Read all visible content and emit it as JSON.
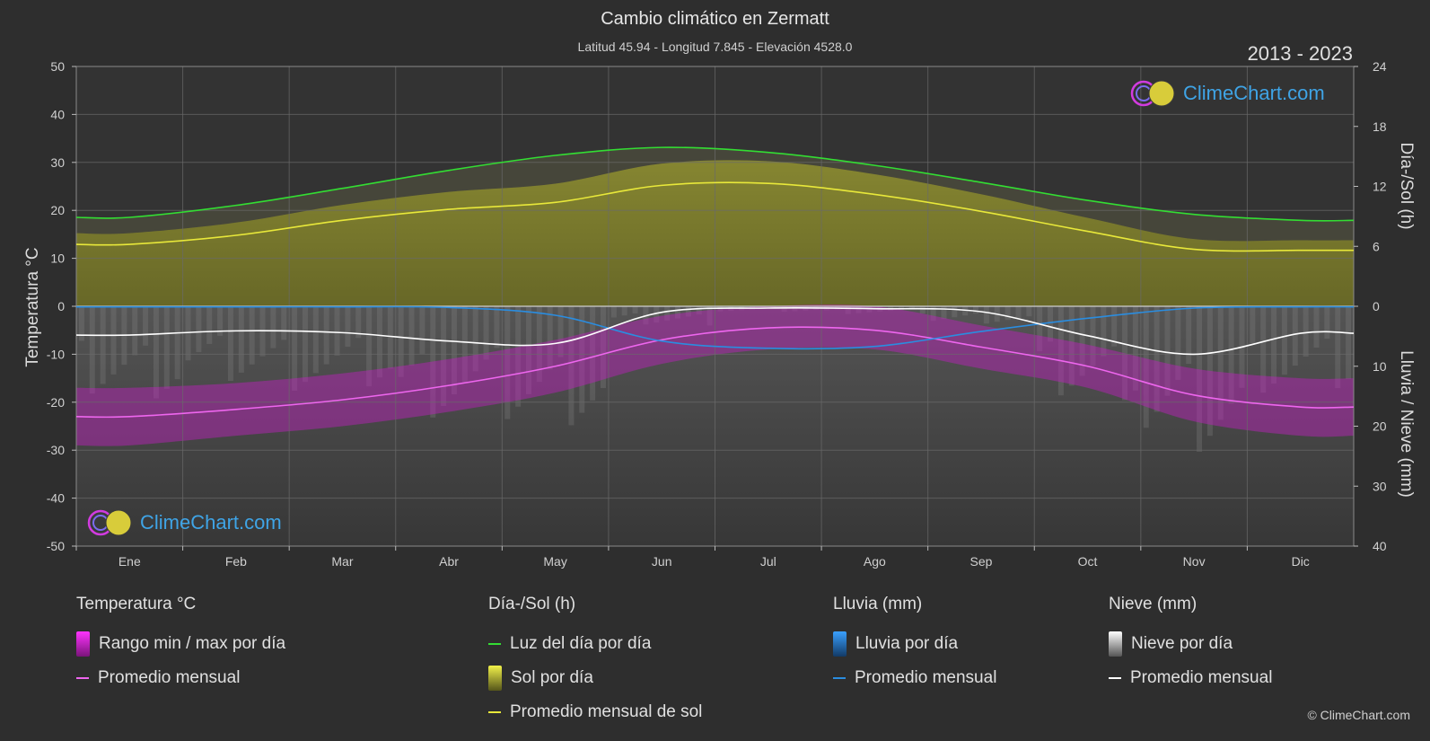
{
  "header": {
    "title": "Cambio climático en Zermatt",
    "subtitle": "Latitud 45.94 - Longitud 7.845 - Elevación 4528.0",
    "years": "2013 - 2023"
  },
  "brand": {
    "logo_text": "ClimeChart.com",
    "copyright": "© ClimeChart.com"
  },
  "axes": {
    "left_title": "Temperatura °C",
    "right_top_title": "Día-/Sol (h)",
    "right_bottom_title": "Lluvia / Nieve (mm)"
  },
  "chart_data": {
    "type": "line",
    "categories": [
      "Ene",
      "Feb",
      "Mar",
      "Abr",
      "May",
      "Jun",
      "Jul",
      "Ago",
      "Sep",
      "Oct",
      "Nov",
      "Dic"
    ],
    "temp_axis": {
      "range": [
        -50,
        50
      ],
      "ticks": [
        "50",
        "40",
        "30",
        "20",
        "10",
        "0",
        "-10",
        "-20",
        "-30",
        "-40",
        "-50"
      ]
    },
    "sun_axis": {
      "range": [
        0,
        24
      ],
      "ticks": [
        "24",
        "18",
        "12",
        "6",
        "0"
      ]
    },
    "precip_axis": {
      "range": [
        0,
        40
      ],
      "ticks": [
        "0",
        "10",
        "20",
        "30",
        "40"
      ]
    },
    "grid": true,
    "series": [
      {
        "name": "Luz del día por día",
        "axis": "sun",
        "color": "#33dd33",
        "values": [
          8.9,
          10.1,
          11.8,
          13.6,
          15.1,
          15.9,
          15.4,
          14.1,
          12.4,
          10.6,
          9.2,
          8.6
        ]
      },
      {
        "name": "Promedio mensual de sol",
        "axis": "sun",
        "color": "#e8e83a",
        "values": [
          6.2,
          7.1,
          8.6,
          9.7,
          10.4,
          12.1,
          12.3,
          11.2,
          9.5,
          7.5,
          5.7,
          5.6
        ]
      },
      {
        "name": "Promedio mensual",
        "group": "temp",
        "axis": "temp",
        "color": "#ee66ee",
        "values": [
          -23.0,
          -21.5,
          -19.5,
          -16.5,
          -12.5,
          -7.0,
          -4.5,
          -5.0,
          -8.5,
          -12.5,
          -18.5,
          -21.0
        ]
      },
      {
        "name": "Promedio mensual",
        "group": "rain",
        "axis": "precip",
        "color": "#2a8de0",
        "values": [
          0.1,
          0.1,
          0.1,
          0.2,
          1.5,
          5.8,
          7.0,
          6.7,
          4.2,
          2.0,
          0.3,
          0.1
        ]
      },
      {
        "name": "Promedio mensual",
        "group": "snow",
        "axis": "precip",
        "color": "#ffffff",
        "values": [
          4.8,
          4.1,
          4.4,
          5.8,
          6.2,
          1.0,
          0.3,
          0.4,
          0.9,
          4.9,
          8.0,
          4.5
        ]
      }
    ],
    "temp_range_daily": {
      "name": "Rango min / max por día",
      "min": [
        -29,
        -27,
        -25,
        -22,
        -18,
        -12,
        -9,
        -9,
        -13,
        -17,
        -24,
        -27
      ],
      "max": [
        -17,
        -16,
        -14,
        -11,
        -7,
        -2,
        0,
        0,
        -4,
        -8,
        -13,
        -15
      ]
    }
  },
  "legend": [
    {
      "heading": "Temperatura °C",
      "items": [
        {
          "label": "Rango min / max por día",
          "swatch": "box",
          "color": "#dd22dd"
        },
        {
          "label": "Promedio mensual",
          "swatch": "line",
          "color": "#ee66ee"
        }
      ]
    },
    {
      "heading": "Día-/Sol (h)",
      "items": [
        {
          "label": "Luz del día por día",
          "swatch": "line",
          "color": "#33dd33"
        },
        {
          "label": "Sol por día",
          "swatch": "box",
          "color": "#d6d62e"
        },
        {
          "label": "Promedio mensual de sol",
          "swatch": "line",
          "color": "#e8e83a"
        }
      ]
    },
    {
      "heading": "Lluvia (mm)",
      "items": [
        {
          "label": "Lluvia por día",
          "swatch": "box",
          "color": "#2a8de0"
        },
        {
          "label": "Promedio mensual",
          "swatch": "line",
          "color": "#2a8de0"
        }
      ]
    },
    {
      "heading": "Nieve (mm)",
      "items": [
        {
          "label": "Nieve por día",
          "swatch": "box",
          "color": "#e6e6e6"
        },
        {
          "label": "Promedio mensual",
          "swatch": "line",
          "color": "#ffffff"
        }
      ]
    }
  ]
}
